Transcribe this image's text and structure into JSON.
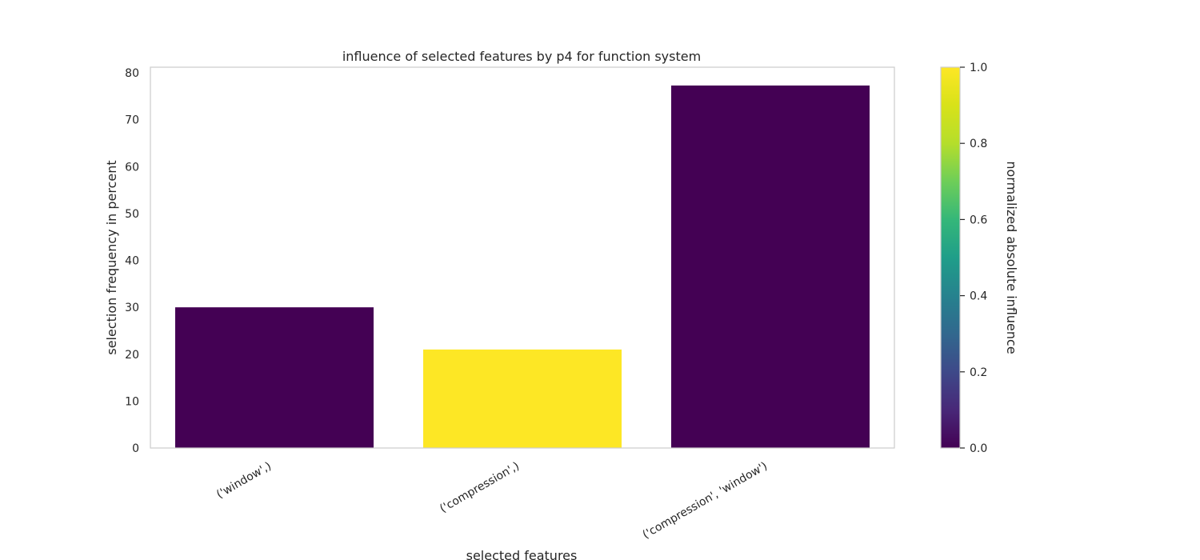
{
  "chart_data": {
    "type": "bar",
    "title": "influence of selected features by p4 for function system",
    "xlabel": "selected features",
    "ylabel": "selection frequency in percent",
    "categories": [
      "('window',)",
      "('compression',)",
      "('compression', 'window')"
    ],
    "values": [
      30,
      21,
      77.3
    ],
    "color_values": [
      0.0,
      1.0,
      0.0
    ],
    "ylim": [
      0,
      81.2
    ],
    "yticks": [
      0,
      10,
      20,
      30,
      40,
      50,
      60,
      70,
      80
    ],
    "grid": false,
    "colorbar": {
      "label": "normalized absolute influence",
      "colormap": "viridis",
      "range": [
        0,
        1
      ],
      "ticks": [
        "0.0",
        "0.2",
        "0.4",
        "0.6",
        "0.8",
        "1.0"
      ],
      "tick_values": [
        0.0,
        0.2,
        0.4,
        0.6,
        0.8,
        1.0
      ]
    },
    "colors": {
      "low": "#440154",
      "high": "#fde725",
      "frame": "#cccccc",
      "text": "#262626"
    }
  }
}
